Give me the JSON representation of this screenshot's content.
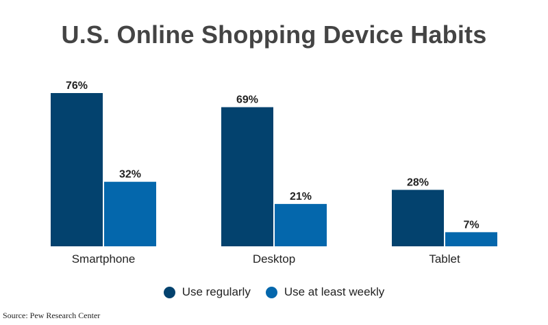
{
  "chart_data": {
    "type": "bar",
    "title": "U.S. Online Shopping Device Habits",
    "categories": [
      "Smartphone",
      "Desktop",
      "Tablet"
    ],
    "series": [
      {
        "name": "Use regularly",
        "values": [
          76,
          69,
          28
        ],
        "color": "#03426E"
      },
      {
        "name": "Use at least weekly",
        "values": [
          32,
          21,
          7
        ],
        "color": "#0467AC"
      }
    ],
    "value_format": "percent",
    "ylim": [
      0,
      76
    ],
    "grid": false,
    "legend_position": "bottom-center",
    "source": "Source: Pew Research Center"
  }
}
